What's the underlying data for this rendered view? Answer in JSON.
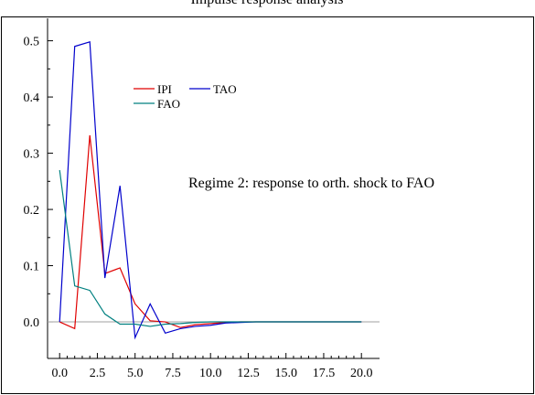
{
  "chart_data": {
    "type": "line",
    "title": "",
    "top_text": "Impulse response analysis",
    "annotation": "Regime 2: response to orth. shock to FAO",
    "xlabel": "",
    "ylabel": "",
    "xlim": [
      -0.8,
      21.2
    ],
    "ylim": [
      -0.065,
      0.54
    ],
    "x_ticks": [
      0.0,
      2.5,
      5.0,
      7.5,
      10.0,
      12.5,
      15.0,
      17.5,
      20.0
    ],
    "x_tick_labels": [
      "0.0",
      "2.5",
      "5.0",
      "7.5",
      "10.0",
      "12.5",
      "15.0",
      "17.5",
      "20.0"
    ],
    "y_ticks": [
      0.0,
      0.1,
      0.2,
      0.3,
      0.4,
      0.5
    ],
    "y_tick_labels": [
      "0.0",
      "0.1",
      "0.2",
      "0.3",
      "0.4",
      "0.5"
    ],
    "zero_line": true,
    "grid": false,
    "legend_position": "upper-middle",
    "x": [
      0,
      1,
      2,
      3,
      4,
      5,
      6,
      7,
      8,
      9,
      10,
      11,
      12,
      13,
      14,
      15,
      16,
      17,
      18,
      19,
      20
    ],
    "series": [
      {
        "name": "IPI",
        "color": "#e00000",
        "values": [
          0.0,
          -0.012,
          0.332,
          0.086,
          0.096,
          0.032,
          0.002,
          0.0,
          -0.01,
          -0.005,
          -0.003,
          -0.001,
          0.0,
          0.0,
          0.0,
          0.0,
          0.0,
          0.0,
          0.0,
          0.0,
          0.0
        ]
      },
      {
        "name": "TAO",
        "color": "#0000cc",
        "values": [
          0.0,
          0.49,
          0.498,
          0.078,
          0.242,
          -0.028,
          0.032,
          -0.02,
          -0.012,
          -0.008,
          -0.006,
          -0.002,
          -0.001,
          0.0,
          0.0,
          0.0,
          0.0,
          0.0,
          0.0,
          0.0,
          0.0
        ]
      },
      {
        "name": "FAO",
        "color": "#008080",
        "values": [
          0.27,
          0.064,
          0.056,
          0.014,
          -0.004,
          -0.004,
          -0.008,
          -0.004,
          -0.003,
          -0.001,
          0.0,
          0.0,
          0.0,
          0.0,
          0.0,
          0.0,
          0.0,
          0.0,
          0.0,
          0.0,
          0.0
        ]
      }
    ]
  }
}
